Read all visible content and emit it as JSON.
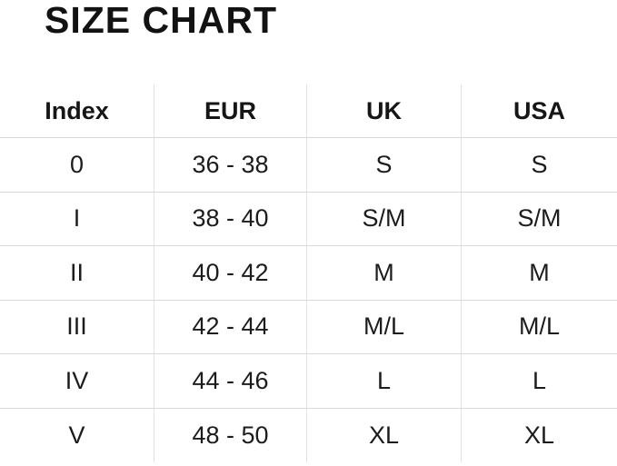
{
  "title": "SIZE CHART",
  "colors": {
    "background": "#ffffff",
    "title_text": "#121212",
    "header_text": "#161616",
    "body_text": "#1c1c1c",
    "horizontal_line": "#d8d8d8",
    "vertical_line": "#e2e2e2"
  },
  "table": {
    "headers": [
      "Index",
      "EUR",
      "UK",
      "USA"
    ],
    "rows": [
      {
        "index": "0",
        "eur": "36 - 38",
        "uk": "S",
        "usa": "S"
      },
      {
        "index": "I",
        "eur": "38 - 40",
        "uk": "S/M",
        "usa": "S/M"
      },
      {
        "index": "II",
        "eur": "40 - 42",
        "uk": "M",
        "usa": "M"
      },
      {
        "index": "III",
        "eur": "42 - 44",
        "uk": "M/L",
        "usa": "M/L"
      },
      {
        "index": "IV",
        "eur": "44 - 46",
        "uk": "L",
        "usa": "L"
      },
      {
        "index": "V",
        "eur": "48 - 50",
        "uk": "XL",
        "usa": "XL"
      }
    ]
  },
  "chart_data": {
    "type": "table",
    "title": "SIZE CHART",
    "columns": [
      "Index",
      "EUR",
      "UK",
      "USA"
    ],
    "rows": [
      [
        "0",
        "36 - 38",
        "S",
        "S"
      ],
      [
        "I",
        "38 - 40",
        "S/M",
        "S/M"
      ],
      [
        "II",
        "40 - 42",
        "M",
        "M"
      ],
      [
        "III",
        "42 - 44",
        "M/L",
        "M/L"
      ],
      [
        "IV",
        "44 - 46",
        "L",
        "L"
      ],
      [
        "V",
        "48 - 50",
        "XL",
        "XL"
      ]
    ],
    "layout": {
      "grid": true,
      "outer_border": false,
      "bottom_rule": false,
      "column_alignment": "center"
    }
  }
}
